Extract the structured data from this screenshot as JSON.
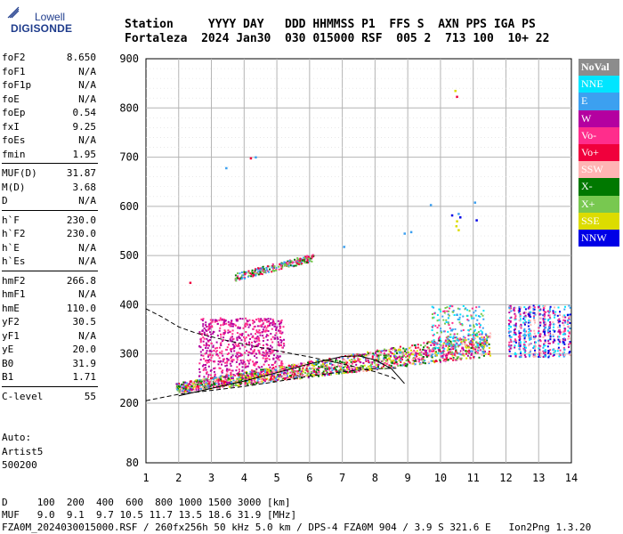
{
  "logo": {
    "line1": "Lowell",
    "line2": "DIGISONDE"
  },
  "header": {
    "labels": "Station     YYYY DAY   DDD HHMMSS P1  FFS S  AXN PPS IGA PS",
    "values": "Fortaleza  2024 Jan30  030 015000 RSF  005 2  713 100  10+ 22"
  },
  "params": [
    {
      "name": "foF2",
      "value": "8.650"
    },
    {
      "name": "foF1",
      "value": "N/A"
    },
    {
      "name": "foF1p",
      "value": "N/A"
    },
    {
      "name": "foE",
      "value": "N/A"
    },
    {
      "name": "foEp",
      "value": "0.54"
    },
    {
      "name": "fxI",
      "value": "9.25"
    },
    {
      "name": "foEs",
      "value": "N/A"
    },
    {
      "name": "fmin",
      "value": "1.95"
    },
    {
      "name": "MUF(D)",
      "value": "31.87"
    },
    {
      "name": "M(D)",
      "value": "3.68"
    },
    {
      "name": "D",
      "value": "N/A"
    },
    {
      "name": "h`F",
      "value": "230.0"
    },
    {
      "name": "h`F2",
      "value": "230.0"
    },
    {
      "name": "h`E",
      "value": "N/A"
    },
    {
      "name": "h`Es",
      "value": "N/A"
    },
    {
      "name": "hmF2",
      "value": "266.8"
    },
    {
      "name": "hmF1",
      "value": "N/A"
    },
    {
      "name": "hmE",
      "value": "110.0"
    },
    {
      "name": "yF2",
      "value": "30.5"
    },
    {
      "name": "yF1",
      "value": "N/A"
    },
    {
      "name": "yE",
      "value": "20.0"
    },
    {
      "name": "B0",
      "value": "31.9"
    },
    {
      "name": "B1",
      "value": "1.71"
    },
    {
      "name": "C-level",
      "value": "55"
    }
  ],
  "autoscaling": {
    "line1": "Auto:",
    "line2": "Artist5",
    "line3": "500200"
  },
  "legend": [
    {
      "label": "NoVal",
      "color": "#8c8c8c"
    },
    {
      "label": "NNE",
      "color": "#00e5ff"
    },
    {
      "label": "E",
      "color": "#3ca0f0"
    },
    {
      "label": "W",
      "color": "#b400a0"
    },
    {
      "label": "Vo-",
      "color": "#ff2d8c"
    },
    {
      "label": "Vo+",
      "color": "#f0003c"
    },
    {
      "label": "SSW",
      "color": "#ffb4b4"
    },
    {
      "label": "X-",
      "color": "#007800"
    },
    {
      "label": "X+",
      "color": "#78c850"
    },
    {
      "label": "SSE",
      "color": "#dcdc00"
    },
    {
      "label": "NNW",
      "color": "#0000e6"
    }
  ],
  "bottom": {
    "distance_row": "D     100  200  400  600  800 1000 1500 3000 [km]",
    "muf_row": "MUF   9.0  9.1  9.7 10.5 11.7 13.5 18.6 31.9 [MHz]",
    "footer": "FZA0M_2024030015000.RSF / 260fx256h 50 kHz 5.0 km / DPS-4 FZA0M 904 / 3.9 S 321.6 E   Ion2Png 1.3.20"
  },
  "chart_data": {
    "type": "scatter",
    "title": "",
    "xlabel": "",
    "ylabel": "",
    "x_axis": {
      "ticks": [
        1,
        2,
        3,
        4,
        5,
        6,
        7,
        8,
        9,
        10,
        11,
        12,
        13,
        14
      ],
      "range": [
        1,
        14
      ]
    },
    "y_axis": {
      "ticks": [
        80,
        200,
        300,
        400,
        500,
        600,
        700,
        800,
        900
      ],
      "range": [
        80,
        900
      ]
    },
    "grid": true,
    "legend_position": "right",
    "series": [
      {
        "name": "E",
        "color": "#3ca0f0",
        "points": [
          [
            3.45,
            678
          ],
          [
            4.35,
            700
          ],
          [
            7.05,
            518
          ],
          [
            9.7,
            603
          ],
          [
            10.55,
            585
          ],
          [
            11.05,
            608
          ],
          [
            10.5,
            380
          ],
          [
            10.9,
            358
          ],
          [
            11.2,
            332
          ],
          [
            8.9,
            545
          ],
          [
            9.1,
            548
          ]
        ]
      },
      {
        "name": "Vo+",
        "color": "#f0003c",
        "points": [
          [
            4.2,
            698
          ],
          [
            10.5,
            823
          ],
          [
            2.35,
            445
          ]
        ]
      },
      {
        "name": "SSE",
        "color": "#dcdc00",
        "points": [
          [
            10.48,
            560
          ],
          [
            10.55,
            552
          ],
          [
            10.5,
            570
          ],
          [
            10.45,
            835
          ]
        ]
      },
      {
        "name": "NNW",
        "color": "#0000e6",
        "points": [
          [
            10.35,
            582
          ],
          [
            10.6,
            578
          ],
          [
            11.1,
            572
          ]
        ]
      }
    ],
    "traces": [
      {
        "name": "F-trace",
        "x_range": [
          3.7,
          6.1
        ],
        "h_range": [
          450,
          500
        ],
        "colors": [
          "#3ca0f0",
          "#007800",
          "#78c850",
          "#f0003c",
          "#ff2d8c"
        ]
      },
      {
        "name": "lower-trace",
        "x_range": [
          1.9,
          11.5
        ],
        "h_range": [
          220,
          330
        ],
        "colors": [
          "#ff2d8c",
          "#f0003c",
          "#007800",
          "#78c850",
          "#3ca0f0",
          "#b400a0",
          "#ffb4b4",
          "#dcdc00"
        ]
      },
      {
        "name": "W-cluster",
        "x_range": [
          2.6,
          5.2
        ],
        "h_range": [
          255,
          375
        ],
        "colors": [
          "#b400a0",
          "#ff2d8c"
        ]
      },
      {
        "name": "oblique-echoes",
        "x_range": [
          12.0,
          14.0
        ],
        "h_range": [
          295,
          400
        ],
        "colors": [
          "#0000e6",
          "#ffb4b4",
          "#3ca0f0",
          "#b400a0",
          "#ff2d8c",
          "#00e5ff"
        ]
      },
      {
        "name": "high-cyan",
        "x_range": [
          9.7,
          11.3
        ],
        "h_range": [
          300,
          400
        ],
        "colors": [
          "#00e5ff",
          "#3ca0f0",
          "#ff2d8c",
          "#78c850"
        ]
      }
    ],
    "curves": [
      {
        "name": "profile-dashed-upper",
        "style": "dashed",
        "points": [
          [
            1,
            392
          ],
          [
            1.5,
            375
          ],
          [
            2,
            355
          ],
          [
            2.5,
            343
          ],
          [
            3,
            335
          ],
          [
            3.5,
            327
          ],
          [
            4,
            320
          ],
          [
            4.5,
            313
          ],
          [
            5,
            307
          ],
          [
            5.5,
            300
          ],
          [
            6,
            294
          ],
          [
            6.5,
            287
          ],
          [
            7,
            280
          ],
          [
            7.5,
            272
          ],
          [
            8,
            264
          ],
          [
            8.5,
            253
          ],
          [
            8.65,
            248
          ]
        ]
      },
      {
        "name": "profile-dashed-lower",
        "style": "dashed",
        "points": [
          [
            1,
            205
          ],
          [
            2,
            218
          ],
          [
            3,
            226
          ],
          [
            4,
            234
          ],
          [
            5,
            244
          ],
          [
            6,
            255
          ],
          [
            7,
            264
          ],
          [
            8,
            270
          ],
          [
            8.65,
            271
          ]
        ]
      },
      {
        "name": "trace-solid",
        "style": "solid",
        "points": [
          [
            2.0,
            215
          ],
          [
            3,
            230
          ],
          [
            4,
            245
          ],
          [
            5,
            262
          ],
          [
            6,
            280
          ],
          [
            7,
            295
          ],
          [
            7.5,
            296
          ],
          [
            8,
            288
          ],
          [
            8.5,
            270
          ],
          [
            8.9,
            240
          ]
        ]
      }
    ]
  }
}
